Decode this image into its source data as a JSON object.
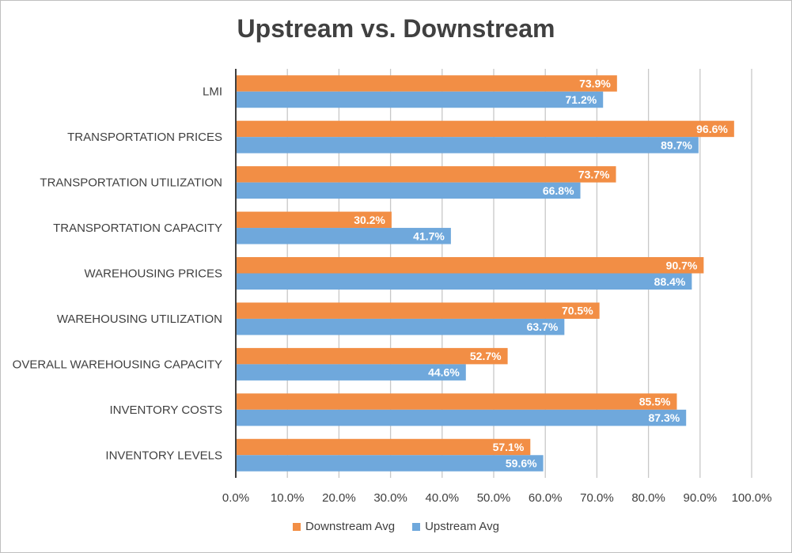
{
  "chart_data": {
    "type": "bar",
    "orientation": "horizontal",
    "title": "Upstream vs. Downstream",
    "categories": [
      "LMI",
      "TRANSPORTATION PRICES",
      "TRANSPORTATION  UTILIZATION",
      "TRANSPORTATION CAPACITY",
      "WAREHOUSING PRICES",
      "WAREHOUSING UTILIZATION",
      "OVERALL WAREHOUSING CAPACITY",
      "INVENTORY COSTS",
      "INVENTORY LEVELS"
    ],
    "series": [
      {
        "name": "Downstream Avg",
        "color": "#f28e45",
        "values": [
          73.9,
          96.6,
          73.7,
          30.2,
          90.7,
          70.5,
          52.7,
          85.5,
          57.1
        ],
        "labels": [
          "73.9%",
          "96.6%",
          "73.7%",
          "30.2%",
          "90.7%",
          "70.5%",
          "52.7%",
          "85.5%",
          "57.1%"
        ]
      },
      {
        "name": "Upstream Avg",
        "color": "#6fa8dc",
        "values": [
          71.2,
          89.7,
          66.8,
          41.7,
          88.4,
          63.7,
          44.6,
          87.3,
          59.6
        ],
        "labels": [
          "71.2%",
          "89.7%",
          "66.8%",
          "41.7%",
          "88.4%",
          "63.7%",
          "44.6%",
          "87.3%",
          "59.6%"
        ]
      }
    ],
    "xlim": [
      0,
      100
    ],
    "xticks": [
      0,
      10,
      20,
      30,
      40,
      50,
      60,
      70,
      80,
      90,
      100
    ],
    "xtick_labels": [
      "0.0%",
      "10.0%",
      "20.0%",
      "30.0%",
      "40.0%",
      "50.0%",
      "60.0%",
      "70.0%",
      "80.0%",
      "90.0%",
      "100.0%"
    ],
    "grid": "vertical",
    "legend_position": "bottom"
  }
}
